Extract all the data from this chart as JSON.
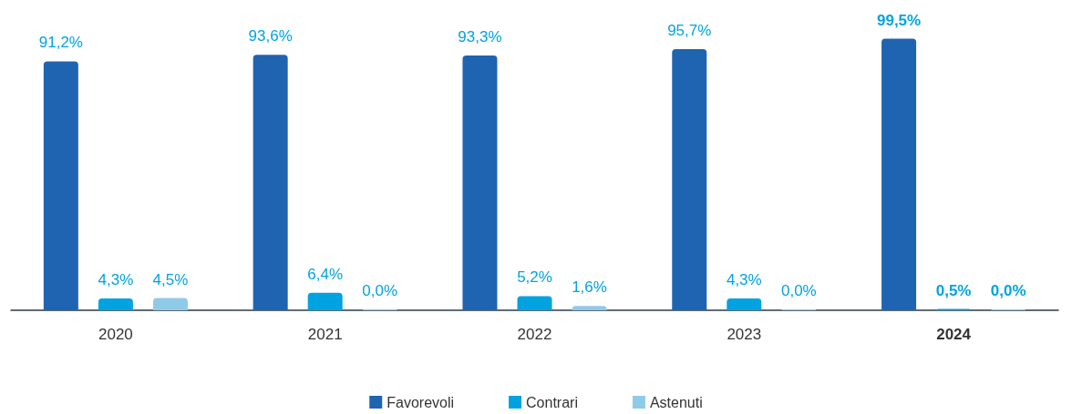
{
  "chart_data": {
    "type": "bar",
    "categories": [
      "2020",
      "2021",
      "2022",
      "2023",
      "2024"
    ],
    "series": [
      {
        "name": "Favorevoli",
        "color": "#1f64b0",
        "values": [
          91.2,
          93.6,
          93.3,
          95.7,
          99.5
        ],
        "value_labels": [
          "91,2%",
          "93,6%",
          "93,3%",
          "95,7%",
          "99,5%"
        ]
      },
      {
        "name": "Contrari",
        "color": "#00a3e0",
        "values": [
          4.3,
          6.4,
          5.2,
          4.3,
          0.5
        ],
        "value_labels": [
          "4,3%",
          "6,4%",
          "5,2%",
          "4,3%",
          "0,5%"
        ]
      },
      {
        "name": "Astenuti",
        "color": "#8fcbe9",
        "values": [
          4.5,
          0.0,
          1.6,
          0.0,
          0.0
        ],
        "value_labels": [
          "4,5%",
          "0,0%",
          "1,6%",
          "0,0%",
          "0,0%"
        ]
      }
    ],
    "legend": "bottom"
  }
}
